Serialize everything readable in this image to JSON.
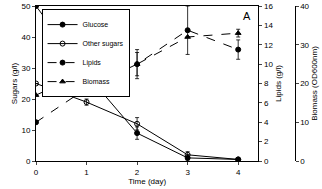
{
  "chart_data": {
    "type": "line",
    "x_label": "Time (day)",
    "y_label": "Sugars (g/l)",
    "y2_label": "Lipids (g/l)",
    "y3_label": "Biomass (OD600nm)",
    "annotations": [
      "A"
    ],
    "x": [
      0,
      1,
      2,
      3,
      4
    ],
    "xlim": [
      0,
      4.4
    ],
    "xticks": [
      0,
      1,
      2,
      3,
      4
    ],
    "ylim": [
      0,
      50
    ],
    "yticks": [
      0,
      10,
      20,
      30,
      40,
      50
    ],
    "y2lim": [
      0,
      16
    ],
    "y2ticks": [
      0,
      2,
      4,
      6,
      8,
      10,
      12,
      14,
      16
    ],
    "y3lim": [
      0,
      40
    ],
    "y3ticks": [
      0,
      10,
      20,
      30,
      40
    ],
    "grid": false,
    "legend": "top left",
    "series": [
      {
        "name": "Glucose",
        "color": "#000000",
        "marker": "circle",
        "line_style": "solid",
        "values": [
          50,
          28,
          9,
          1,
          0.5
        ],
        "error": [
          0,
          0,
          2,
          1,
          0
        ]
      },
      {
        "name": "Other sugars",
        "color": "#000000",
        "marker": "circle-open",
        "line_style": "solid",
        "values": [
          25,
          19,
          12,
          2,
          0.5
        ],
        "error": [
          0,
          1,
          2,
          1,
          0
        ]
      },
      {
        "name": "Lipids",
        "color": "#000000",
        "marker": "circle",
        "line_style": "dash",
        "axis": "y2",
        "values": [
          4,
          7.5,
          10,
          13.5,
          11.5
        ],
        "error": [
          0,
          0.8,
          1.5,
          2.5,
          1
        ]
      },
      {
        "name": "Biomass",
        "color": "#000000",
        "marker": "triangle-up",
        "line_style": "dash",
        "axis": "y3",
        "values": [
          17,
          23,
          25,
          32,
          33
        ],
        "error": [
          0,
          3,
          3,
          0,
          1
        ]
      }
    ]
  }
}
